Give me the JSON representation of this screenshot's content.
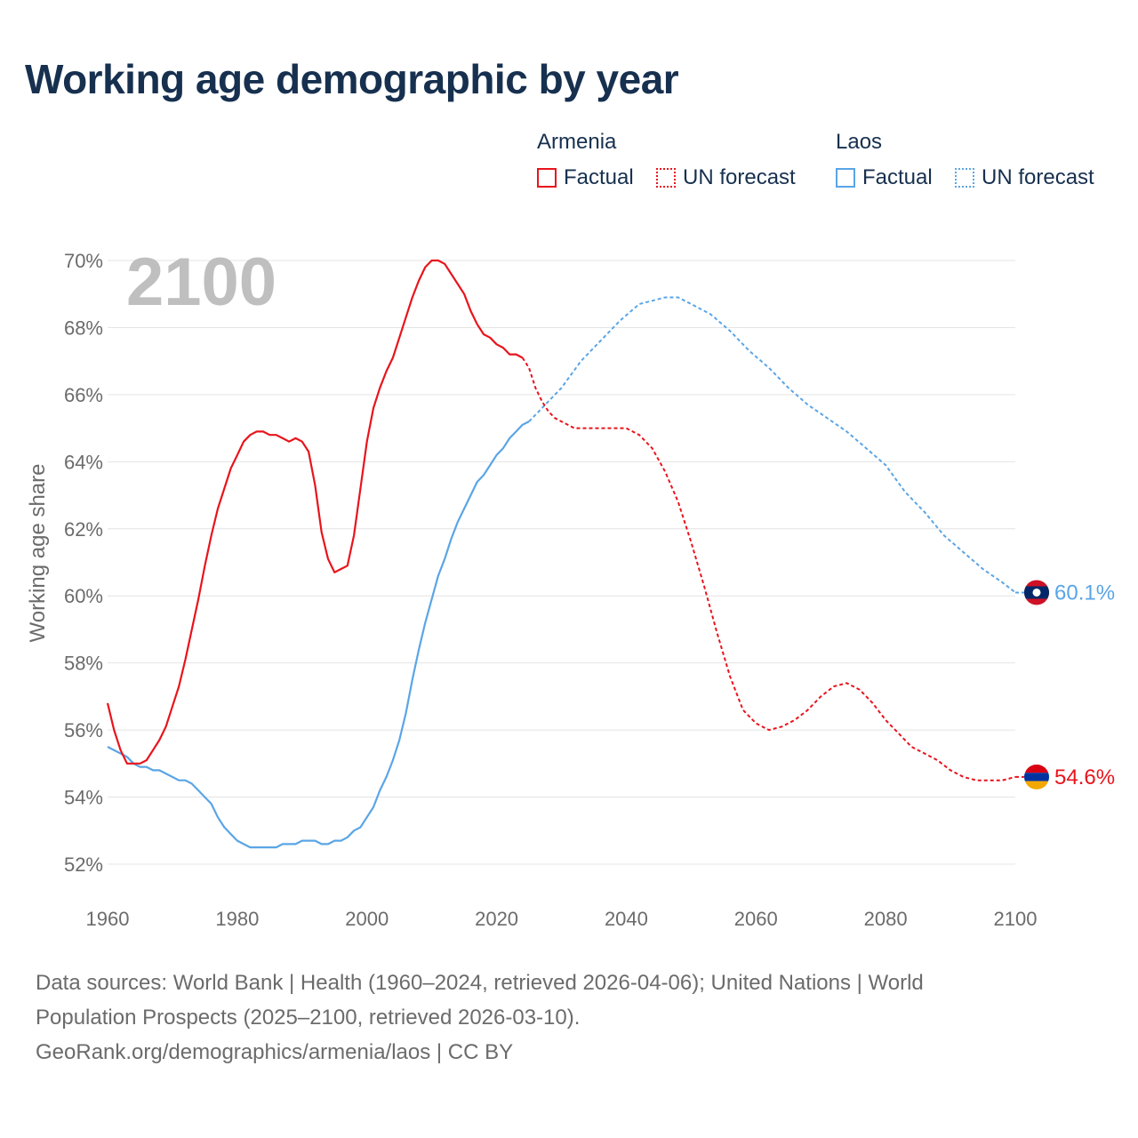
{
  "title": "Working age demographic by year",
  "legend": {
    "groups": [
      {
        "name": "Armenia",
        "color": "#e8141c",
        "factual_label": "Factual",
        "forecast_label": "UN forecast"
      },
      {
        "name": "Laos",
        "color": "#5aa5e6",
        "factual_label": "Factual",
        "forecast_label": "UN forecast"
      }
    ]
  },
  "year_watermark": "2100",
  "source": {
    "line1": "Data sources: World Bank | Health (1960–2024, retrieved 2026-04-06); United Nations | World",
    "line2": "Population Prospects (2025–2100, retrieved 2026-03-10).",
    "line3": "GeoRank.org/demographics/armenia/laos | CC BY"
  },
  "chart_data": {
    "type": "line",
    "title": "Working age demographic by year",
    "xlabel": "",
    "ylabel": "Working age share",
    "xlim": [
      1960,
      2100
    ],
    "ylim": [
      52,
      70
    ],
    "x_ticks": [
      1960,
      1980,
      2000,
      2020,
      2040,
      2060,
      2080,
      2100
    ],
    "x_tick_labels": [
      "1960",
      "1980",
      "2000",
      "2020",
      "2040",
      "2060",
      "2080",
      "2100"
    ],
    "y_ticks": [
      52,
      54,
      56,
      58,
      60,
      62,
      64,
      66,
      68,
      70
    ],
    "y_tick_labels": [
      "52%",
      "54%",
      "56%",
      "58%",
      "60%",
      "62%",
      "64%",
      "66%",
      "68%",
      "70%"
    ],
    "grid": true,
    "series": [
      {
        "name": "Armenia",
        "color": "#e8141c",
        "end_label": "54.6%",
        "factual": [
          [
            1960,
            56.8
          ],
          [
            1961,
            56.0
          ],
          [
            1962,
            55.4
          ],
          [
            1963,
            55.0
          ],
          [
            1964,
            55.0
          ],
          [
            1965,
            55.0
          ],
          [
            1966,
            55.1
          ],
          [
            1967,
            55.4
          ],
          [
            1968,
            55.7
          ],
          [
            1969,
            56.1
          ],
          [
            1970,
            56.7
          ],
          [
            1971,
            57.3
          ],
          [
            1972,
            58.1
          ],
          [
            1973,
            59.0
          ],
          [
            1974,
            59.9
          ],
          [
            1975,
            60.9
          ],
          [
            1976,
            61.8
          ],
          [
            1977,
            62.6
          ],
          [
            1978,
            63.2
          ],
          [
            1979,
            63.8
          ],
          [
            1980,
            64.2
          ],
          [
            1981,
            64.6
          ],
          [
            1982,
            64.8
          ],
          [
            1983,
            64.9
          ],
          [
            1984,
            64.9
          ],
          [
            1985,
            64.8
          ],
          [
            1986,
            64.8
          ],
          [
            1987,
            64.7
          ],
          [
            1988,
            64.6
          ],
          [
            1989,
            64.7
          ],
          [
            1990,
            64.6
          ],
          [
            1991,
            64.3
          ],
          [
            1992,
            63.3
          ],
          [
            1993,
            61.9
          ],
          [
            1994,
            61.1
          ],
          [
            1995,
            60.7
          ],
          [
            1996,
            60.8
          ],
          [
            1997,
            60.9
          ],
          [
            1998,
            61.8
          ],
          [
            1999,
            63.2
          ],
          [
            2000,
            64.6
          ],
          [
            2001,
            65.6
          ],
          [
            2002,
            66.2
          ],
          [
            2003,
            66.7
          ],
          [
            2004,
            67.1
          ],
          [
            2005,
            67.7
          ],
          [
            2006,
            68.3
          ],
          [
            2007,
            68.9
          ],
          [
            2008,
            69.4
          ],
          [
            2009,
            69.8
          ],
          [
            2010,
            70.0
          ],
          [
            2011,
            70.0
          ],
          [
            2012,
            69.9
          ],
          [
            2013,
            69.6
          ],
          [
            2014,
            69.3
          ],
          [
            2015,
            69.0
          ],
          [
            2016,
            68.5
          ],
          [
            2017,
            68.1
          ],
          [
            2018,
            67.8
          ],
          [
            2019,
            67.7
          ],
          [
            2020,
            67.5
          ],
          [
            2021,
            67.4
          ],
          [
            2022,
            67.2
          ],
          [
            2023,
            67.2
          ],
          [
            2024,
            67.1
          ]
        ],
        "forecast": [
          [
            2024,
            67.1
          ],
          [
            2025,
            66.8
          ],
          [
            2026,
            66.2
          ],
          [
            2027,
            65.8
          ],
          [
            2028,
            65.5
          ],
          [
            2029,
            65.3
          ],
          [
            2030,
            65.2
          ],
          [
            2032,
            65.0
          ],
          [
            2035,
            65.0
          ],
          [
            2040,
            65.0
          ],
          [
            2042,
            64.8
          ],
          [
            2044,
            64.4
          ],
          [
            2046,
            63.7
          ],
          [
            2048,
            62.8
          ],
          [
            2050,
            61.6
          ],
          [
            2052,
            60.3
          ],
          [
            2054,
            58.9
          ],
          [
            2056,
            57.6
          ],
          [
            2058,
            56.6
          ],
          [
            2060,
            56.2
          ],
          [
            2062,
            56.0
          ],
          [
            2064,
            56.1
          ],
          [
            2066,
            56.3
          ],
          [
            2068,
            56.6
          ],
          [
            2070,
            57.0
          ],
          [
            2072,
            57.3
          ],
          [
            2074,
            57.4
          ],
          [
            2076,
            57.2
          ],
          [
            2078,
            56.8
          ],
          [
            2080,
            56.3
          ],
          [
            2082,
            55.9
          ],
          [
            2084,
            55.5
          ],
          [
            2086,
            55.3
          ],
          [
            2088,
            55.1
          ],
          [
            2090,
            54.8
          ],
          [
            2092,
            54.6
          ],
          [
            2094,
            54.5
          ],
          [
            2096,
            54.5
          ],
          [
            2098,
            54.5
          ],
          [
            2100,
            54.6
          ]
        ]
      },
      {
        "name": "Laos",
        "color": "#5aa5e6",
        "end_label": "60.1%",
        "factual": [
          [
            1960,
            55.5
          ],
          [
            1962,
            55.3
          ],
          [
            1963,
            55.2
          ],
          [
            1964,
            55.0
          ],
          [
            1965,
            54.9
          ],
          [
            1966,
            54.9
          ],
          [
            1967,
            54.8
          ],
          [
            1968,
            54.8
          ],
          [
            1969,
            54.7
          ],
          [
            1970,
            54.6
          ],
          [
            1971,
            54.5
          ],
          [
            1972,
            54.5
          ],
          [
            1973,
            54.4
          ],
          [
            1974,
            54.2
          ],
          [
            1975,
            54.0
          ],
          [
            1976,
            53.8
          ],
          [
            1977,
            53.4
          ],
          [
            1978,
            53.1
          ],
          [
            1979,
            52.9
          ],
          [
            1980,
            52.7
          ],
          [
            1981,
            52.6
          ],
          [
            1982,
            52.5
          ],
          [
            1984,
            52.5
          ],
          [
            1986,
            52.5
          ],
          [
            1987,
            52.6
          ],
          [
            1989,
            52.6
          ],
          [
            1990,
            52.7
          ],
          [
            1992,
            52.7
          ],
          [
            1993,
            52.6
          ],
          [
            1994,
            52.6
          ],
          [
            1995,
            52.7
          ],
          [
            1996,
            52.7
          ],
          [
            1997,
            52.8
          ],
          [
            1998,
            53.0
          ],
          [
            1999,
            53.1
          ],
          [
            2000,
            53.4
          ],
          [
            2001,
            53.7
          ],
          [
            2002,
            54.2
          ],
          [
            2003,
            54.6
          ],
          [
            2004,
            55.1
          ],
          [
            2005,
            55.7
          ],
          [
            2006,
            56.5
          ],
          [
            2007,
            57.5
          ],
          [
            2008,
            58.4
          ],
          [
            2009,
            59.2
          ],
          [
            2010,
            59.9
          ],
          [
            2011,
            60.6
          ],
          [
            2012,
            61.1
          ],
          [
            2013,
            61.7
          ],
          [
            2014,
            62.2
          ],
          [
            2015,
            62.6
          ],
          [
            2016,
            63.0
          ],
          [
            2017,
            63.4
          ],
          [
            2018,
            63.6
          ],
          [
            2019,
            63.9
          ],
          [
            2020,
            64.2
          ],
          [
            2021,
            64.4
          ],
          [
            2022,
            64.7
          ],
          [
            2023,
            64.9
          ],
          [
            2024,
            65.1
          ],
          [
            2025,
            65.2
          ]
        ],
        "forecast": [
          [
            2025,
            65.2
          ],
          [
            2027,
            65.6
          ],
          [
            2030,
            66.2
          ],
          [
            2033,
            67.0
          ],
          [
            2036,
            67.6
          ],
          [
            2039,
            68.2
          ],
          [
            2042,
            68.7
          ],
          [
            2044,
            68.8
          ],
          [
            2046,
            68.9
          ],
          [
            2048,
            68.9
          ],
          [
            2050,
            68.7
          ],
          [
            2053,
            68.4
          ],
          [
            2056,
            67.9
          ],
          [
            2059,
            67.3
          ],
          [
            2062,
            66.8
          ],
          [
            2065,
            66.2
          ],
          [
            2068,
            65.7
          ],
          [
            2071,
            65.3
          ],
          [
            2074,
            64.9
          ],
          [
            2077,
            64.4
          ],
          [
            2080,
            63.9
          ],
          [
            2083,
            63.1
          ],
          [
            2086,
            62.5
          ],
          [
            2089,
            61.8
          ],
          [
            2092,
            61.3
          ],
          [
            2095,
            60.8
          ],
          [
            2098,
            60.4
          ],
          [
            2100,
            60.1
          ]
        ]
      }
    ]
  }
}
